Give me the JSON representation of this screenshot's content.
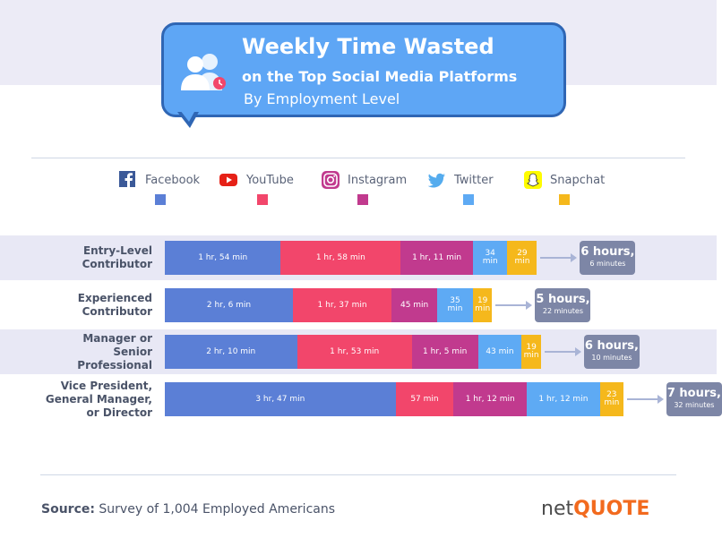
{
  "header": {
    "title_line1": "Weekly Time Wasted",
    "title_line2": "on the Top Social Media Platforms",
    "subtitle": "By Employment Level",
    "icon": "users-icon"
  },
  "legend": [
    {
      "name": "Facebook",
      "color": "#5b7fd6",
      "icon": "facebook-icon"
    },
    {
      "name": "YouTube",
      "color": "#f2466b",
      "icon": "youtube-icon"
    },
    {
      "name": "Instagram",
      "color": "#c13a8e",
      "icon": "instagram-icon"
    },
    {
      "name": "Twitter",
      "color": "#5eaaf4",
      "icon": "twitter-icon"
    },
    {
      "name": "Snapchat",
      "color": "#f5b81c",
      "icon": "snapchat-icon"
    }
  ],
  "chart_data": {
    "type": "bar",
    "orientation": "horizontal",
    "stacked": true,
    "unit": "minutes",
    "categories": [
      "Entry-Level Contributor",
      "Experienced Contributor",
      "Manager or Senior Professional",
      "Vice President, General Manager, or Director"
    ],
    "series": [
      {
        "name": "Facebook",
        "values": [
          114,
          126,
          130,
          227
        ],
        "labels": [
          "1 hr, 54 min",
          "2 hr, 6 min",
          "2 hr, 10 min",
          "3 hr, 47 min"
        ]
      },
      {
        "name": "YouTube",
        "values": [
          118,
          97,
          113,
          57
        ],
        "labels": [
          "1 hr, 58 min",
          "1 hr, 37 min",
          "1 hr, 53 min",
          "57 min"
        ]
      },
      {
        "name": "Instagram",
        "values": [
          71,
          45,
          65,
          72
        ],
        "labels": [
          "1 hr, 11 min",
          "45 min",
          "1 hr, 5 min",
          "1 hr, 12 min"
        ]
      },
      {
        "name": "Twitter",
        "values": [
          34,
          35,
          43,
          72
        ],
        "labels": [
          "34 min",
          "35 min",
          "43 min",
          "1 hr, 12 min"
        ]
      },
      {
        "name": "Snapchat",
        "values": [
          29,
          19,
          19,
          23
        ],
        "labels": [
          "29 min",
          "19 min",
          "19 min",
          "23 min"
        ]
      }
    ],
    "totals": [
      {
        "hours": "6 hours,",
        "minutes": "6 minutes"
      },
      {
        "hours": "5 hours,",
        "minutes": "22 minutes"
      },
      {
        "hours": "6 hours,",
        "minutes": "10 minutes"
      },
      {
        "hours": "7 hours,",
        "minutes": "32 minutes"
      }
    ],
    "row_labels": [
      [
        "Entry-Level",
        "Contributor"
      ],
      [
        "Experienced",
        "Contributor"
      ],
      [
        "Manager or",
        "Senior",
        "Professional"
      ],
      [
        "Vice President,",
        "General Manager,",
        "or Director"
      ]
    ]
  },
  "footer": {
    "source_label": "Source:",
    "source_text": " Survey of 1,004 Employed Americans",
    "logo_net": "net",
    "logo_quote": "QUOTE"
  }
}
